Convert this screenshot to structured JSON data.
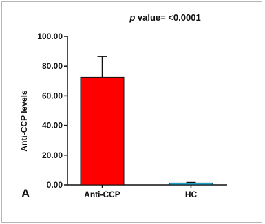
{
  "chart_data": {
    "type": "bar",
    "title_prefix": "p",
    "title_rest": " value= <0.0001",
    "panel_label": "A",
    "ylabel": "Anti-CCP levels",
    "xlabel": "",
    "categories": [
      "Anti-CCP",
      "HC"
    ],
    "values": [
      72.5,
      1.2
    ],
    "error_upper": [
      86.5,
      1.6
    ],
    "bar_colors": [
      "#ff0000",
      "#1fa0c9"
    ],
    "ylim": [
      0,
      100
    ],
    "yticks": [
      0,
      20,
      40,
      60,
      80,
      100
    ],
    "ytick_labels": [
      "0.00",
      "20.00",
      "40.00",
      "60.00",
      "80.00",
      "100.00"
    ],
    "grid": false,
    "legend": "none"
  }
}
